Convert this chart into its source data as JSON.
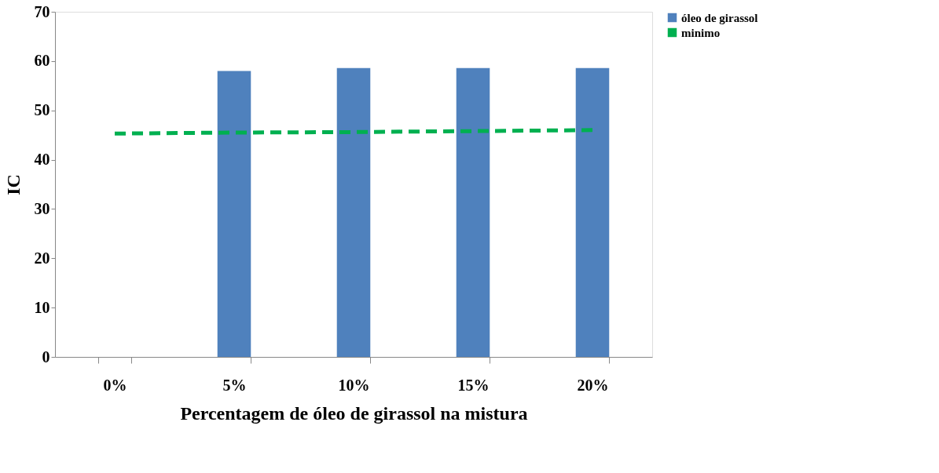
{
  "chart_data": {
    "type": "bar",
    "xlabel": "Percentagem de óleo de girassol na mistura",
    "ylabel": "IC",
    "categories": [
      "0%",
      "5%",
      "10%",
      "15%",
      "20%"
    ],
    "series": [
      {
        "name": "óleo de girassol",
        "color": "#4f81bd",
        "values": [
          null,
          58.0,
          58.6,
          58.6,
          58.6
        ]
      },
      {
        "name": "minimo",
        "type": "line",
        "line_style": "dashed",
        "color": "#00b050",
        "values": [
          45.3,
          45.5,
          45.6,
          45.8,
          46.0
        ]
      }
    ],
    "ylim": [
      0,
      70
    ],
    "yticks": [
      0,
      10,
      20,
      30,
      40,
      50,
      60,
      70
    ],
    "grid": false,
    "legend": "right"
  }
}
